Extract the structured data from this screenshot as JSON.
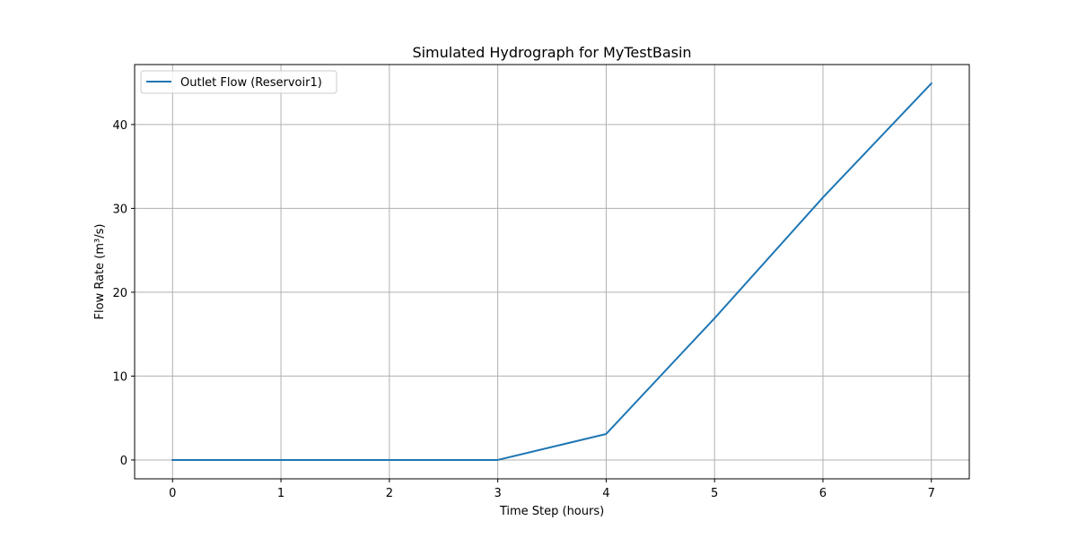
{
  "chart_data": {
    "type": "line",
    "title": "Simulated Hydrograph for MyTestBasin",
    "xlabel": "Time Step (hours)",
    "ylabel": "Flow Rate (m³/s)",
    "x": [
      0,
      1,
      2,
      3,
      4,
      5,
      6,
      7
    ],
    "series": [
      {
        "name": "Outlet Flow (Reservoir1)",
        "values": [
          0,
          0,
          0,
          0,
          3.1,
          16.9,
          31.3,
          44.9
        ],
        "color": "#1f77b4"
      }
    ],
    "xticks": [
      "0",
      "1",
      "2",
      "3",
      "4",
      "5",
      "6",
      "7"
    ],
    "yticks": [
      "0",
      "10",
      "20",
      "30",
      "40"
    ],
    "xlim": [
      -0.35,
      7.35
    ],
    "ylim": [
      -2.25,
      47.15
    ],
    "grid": true,
    "legend_position": "upper-left"
  }
}
